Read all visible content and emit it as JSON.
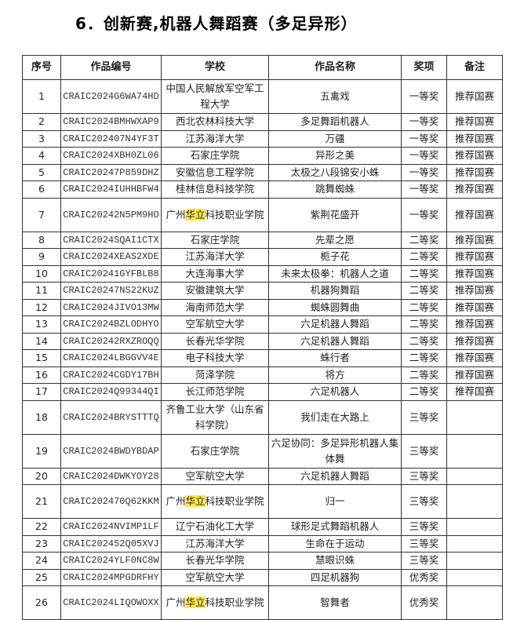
{
  "title": "6．创新赛,机器人舞蹈赛（多足异形）",
  "headers": [
    "序号",
    "作品编号",
    "学校",
    "作品名称",
    "奖项",
    "备注"
  ],
  "rows": [
    [
      "1",
      "CRAIC2024G6WA74HD",
      "中国人民解放军空军工程大学",
      "五禽戏",
      "一等奖",
      "推荐国赛"
    ],
    [
      "2",
      "CRAIC2024BMHWXAP9",
      "西北农林科技大学",
      "多足舞蹈机器人",
      "一等奖",
      "推荐国赛"
    ],
    [
      "3",
      "CRAIC202407N4YF3T",
      "江苏海洋大学",
      "万疆",
      "一等奖",
      "推荐国赛"
    ],
    [
      "4",
      "CRAIC2024XBH0ZL06",
      "石家庄学院",
      "异形之美",
      "一等奖",
      "推荐国赛"
    ],
    [
      "5",
      "CRAIC20247P859DHZ",
      "安徽信息工程学院",
      "太极之八段锦安小蛛",
      "一等奖",
      "推荐国赛"
    ],
    [
      "6",
      "CRAIC2024IUHHBFW4",
      "桂林信息科技学院",
      "跳舞蜘蛛",
      "一等奖",
      "推荐国赛"
    ],
    [
      "7",
      "CRAIC20242N5PM9HO",
      "广州华立科技职业学院",
      "紫荆花盛开",
      "一等奖",
      "推荐国赛"
    ],
    [
      "8",
      "CRAIC2024SQAI1CTX",
      "石家庄学院",
      "先辈之愿",
      "二等奖",
      "推荐国赛"
    ],
    [
      "9",
      "CRAIC2024XEAS2XDE",
      "江苏海洋大学",
      "栀子花",
      "二等奖",
      "推荐国赛"
    ],
    [
      "10",
      "CRAIC20241GYFBLB8",
      "大连海事大学",
      "未来太极拳：机器人之道",
      "二等奖",
      "推荐国赛"
    ],
    [
      "11",
      "CRAIC20247NS22KUZ",
      "安徽建筑大学",
      "机器狗舞蹈",
      "二等奖",
      "推荐国赛"
    ],
    [
      "12",
      "CRAIC2024JIVO13MW",
      "海南师范大学",
      "蜘蛛圆舞曲",
      "二等奖",
      "推荐国赛"
    ],
    [
      "13",
      "CRAIC2024BZLODHYO",
      "空军航空大学",
      "六足机器人舞蹈",
      "二等奖",
      "推荐国赛"
    ],
    [
      "14",
      "CRAIC20242RXZROQQ",
      "长春光华学院",
      "六足机器人舞蹈",
      "二等奖",
      "推荐国赛"
    ],
    [
      "15",
      "CRAIC2024LBGGVV4E",
      "电子科技大学",
      "蛛行者",
      "二等奖",
      "推荐国赛"
    ],
    [
      "16",
      "CRAIC2024CGDY17BH",
      "菏泽学院",
      "将方",
      "二等奖",
      "推荐国赛"
    ],
    [
      "17",
      "CRAIC2024Q99344QI",
      "长江师范学院",
      "六足机器人",
      "二等奖",
      "推荐国赛"
    ],
    [
      "18",
      "CRAIC2024BRYSTTTQ",
      "齐鲁工业大学（山东省科学院）",
      "我们走在大路上",
      "三等奖",
      ""
    ],
    [
      "19",
      "CRAIC2024BWDYBDAP",
      "石家庄学院",
      "六足协同：多足异形机器人集体舞",
      "三等奖",
      ""
    ],
    [
      "20",
      "CRAIC2024DWKYOY28",
      "空军航空大学",
      "六足机器人舞蹈",
      "三等奖",
      ""
    ],
    [
      "21",
      "CRAIC202470Q62KKM",
      "广州华立科技职业学院",
      "归一",
      "三等奖",
      ""
    ],
    [
      "22",
      "CRAIC2024NVIMP1LF",
      "辽宁石油化工大学",
      "球形足式舞蹈机器人",
      "三等奖",
      ""
    ],
    [
      "23",
      "CRAIC202452Q05XVJ",
      "江苏海洋大学",
      "生命在于运动",
      "三等奖",
      ""
    ],
    [
      "24",
      "CRAIC2024YLF0NC8W",
      "长春光华学院",
      "慧眼识蛛",
      "三等奖",
      ""
    ],
    [
      "25",
      "CRAIC2024MPGDRFHY",
      "空军航空大学",
      "四足机器狗",
      "优秀奖",
      ""
    ],
    [
      "26",
      "CRAIC2024LIQOWOXX",
      "广州华立科技职业学院",
      "智舞者",
      "优秀奖",
      ""
    ]
  ],
  "tall_rows": [
    1,
    7,
    18,
    19,
    21,
    26
  ],
  "highlight_text": "华立",
  "highlight_color": "#ffe84a"
}
